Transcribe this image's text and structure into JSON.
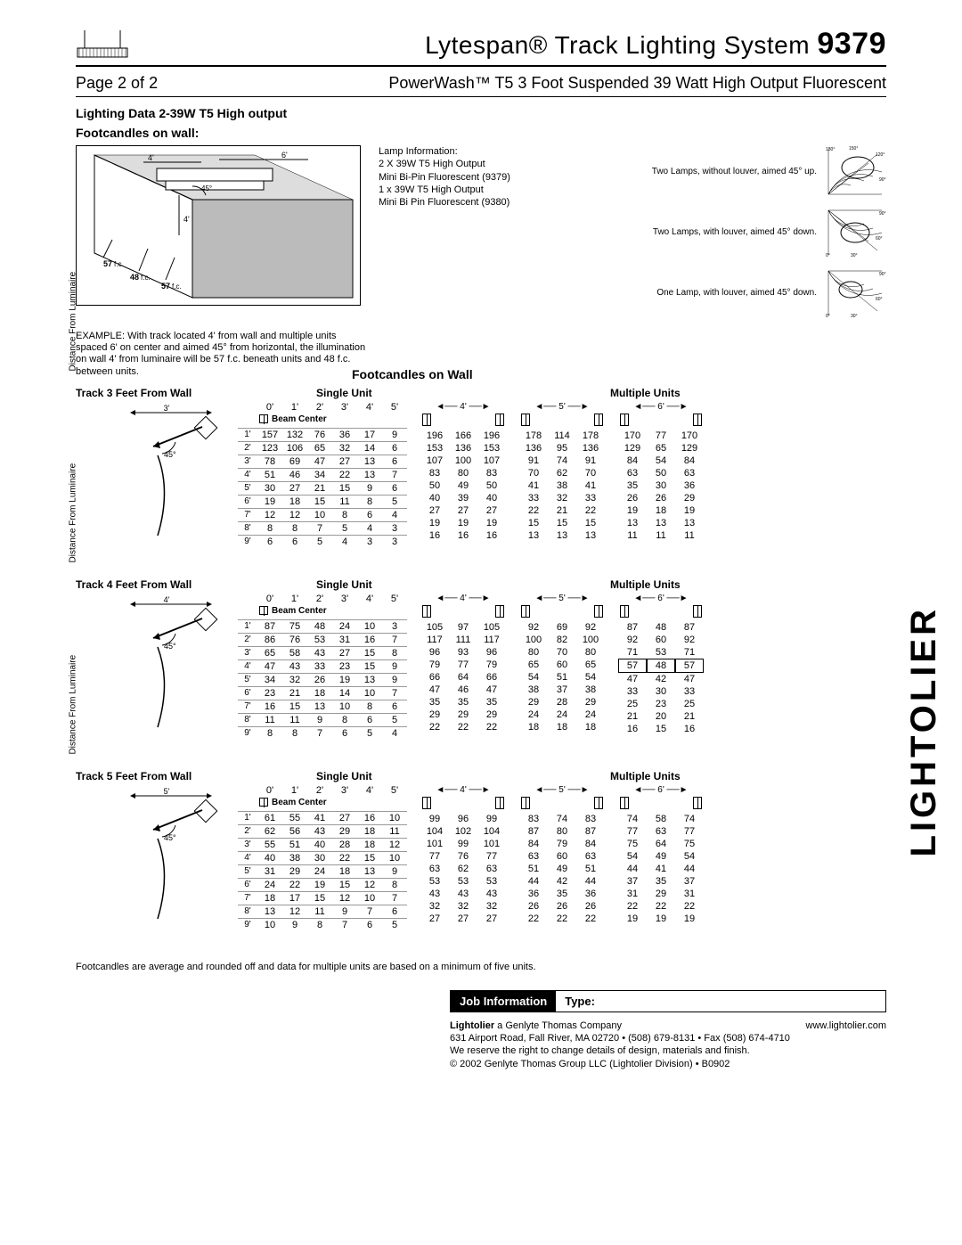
{
  "header": {
    "product_line": "Lytespan® Track Lighting System",
    "model": "9379",
    "page": "Page 2 of 2",
    "product_name": "PowerWash™ T5 3 Foot Suspended 39 Watt High Output Fluorescent"
  },
  "section_title": "Lighting Data  2-39W T5 High output",
  "footcandles_label": "Footcandles on wall:",
  "diagram_labels": {
    "d1": "4'",
    "d2": "6'",
    "angle": "45°",
    "d3": "4'",
    "fc1": "57 f.c.",
    "fc2": "48 f.c.",
    "fc3": "57 f.c."
  },
  "lamp_info": {
    "title": "Lamp Information:",
    "l1": "2 X 39W T5 High Output",
    "l2": "Mini Bi-Pin Fluorescent (9379)",
    "l3": "1 x 39W T5 High Output",
    "l4": "Mini Bi Pin Fluorescent (9380)"
  },
  "polar": {
    "p1": "Two Lamps, without louver, aimed 45° up.",
    "p2": "Two Lamps, with louver, aimed 45° down.",
    "p3": "One Lamp, with louver, aimed 45° down.",
    "angles": {
      "a180": "180°",
      "a150": "150°",
      "a120": "120°",
      "a90": "90°",
      "a60": "60°",
      "a30": "30°",
      "a0": "0°"
    }
  },
  "example": "EXAMPLE:  With track located 4' from wall and multiple units spaced 6' on center and aimed 45° from horizontal, the illumination on wall 4' from luminaire will be 57 f.c. beneath units and 48 f.c. between units.",
  "fc_wall_title": "Footcandles on Wall",
  "headers": {
    "beam_center": "Beam Center",
    "single_unit": "Single Unit",
    "multiple_units": "Multiple  Units",
    "y_axis": "Distance From Luminaire",
    "cols": [
      "0'",
      "1'",
      "2'",
      "3'",
      "4'",
      "5'"
    ],
    "rows": [
      "1'",
      "2'",
      "3'",
      "4'",
      "5'",
      "6'",
      "7'",
      "8'",
      "9'"
    ],
    "spacings": [
      "4'",
      "5'",
      "6'"
    ],
    "angle": "45°"
  },
  "tables": {
    "t3": {
      "label": "Track 3 Feet From Wall",
      "dist": "3'",
      "single": [
        [
          157,
          132,
          76,
          36,
          17,
          9
        ],
        [
          123,
          106,
          65,
          32,
          14,
          6
        ],
        [
          78,
          69,
          47,
          27,
          13,
          6
        ],
        [
          51,
          46,
          34,
          22,
          13,
          7
        ],
        [
          30,
          27,
          21,
          15,
          9,
          6
        ],
        [
          19,
          18,
          15,
          11,
          8,
          5
        ],
        [
          12,
          12,
          10,
          8,
          6,
          4
        ],
        [
          8,
          8,
          7,
          5,
          4,
          3
        ],
        [
          6,
          6,
          5,
          4,
          3,
          3
        ]
      ],
      "m4": [
        [
          196,
          166,
          196
        ],
        [
          153,
          136,
          153
        ],
        [
          107,
          100,
          107
        ],
        [
          83,
          80,
          83
        ],
        [
          50,
          49,
          50
        ],
        [
          40,
          39,
          40
        ],
        [
          27,
          27,
          27
        ],
        [
          19,
          19,
          19
        ],
        [
          16,
          16,
          16
        ]
      ],
      "m5": [
        [
          178,
          114,
          178
        ],
        [
          136,
          95,
          136
        ],
        [
          91,
          74,
          91
        ],
        [
          70,
          62,
          70
        ],
        [
          41,
          38,
          41
        ],
        [
          33,
          32,
          33
        ],
        [
          22,
          21,
          22
        ],
        [
          15,
          15,
          15
        ],
        [
          13,
          13,
          13
        ]
      ],
      "m6": [
        [
          170,
          77,
          170
        ],
        [
          129,
          65,
          129
        ],
        [
          84,
          54,
          84
        ],
        [
          63,
          50,
          63
        ],
        [
          35,
          30,
          36
        ],
        [
          26,
          26,
          29
        ],
        [
          19,
          18,
          19
        ],
        [
          13,
          13,
          13
        ],
        [
          11,
          11,
          11
        ]
      ]
    },
    "t4": {
      "label": "Track 4 Feet From Wall",
      "dist": "4'",
      "single": [
        [
          87,
          75,
          48,
          24,
          10,
          3
        ],
        [
          86,
          76,
          53,
          31,
          16,
          7
        ],
        [
          65,
          58,
          43,
          27,
          15,
          8
        ],
        [
          47,
          43,
          33,
          23,
          15,
          9
        ],
        [
          34,
          32,
          26,
          19,
          13,
          9
        ],
        [
          23,
          21,
          18,
          14,
          10,
          7
        ],
        [
          16,
          15,
          13,
          10,
          8,
          6
        ],
        [
          11,
          11,
          9,
          8,
          6,
          5
        ],
        [
          8,
          8,
          7,
          6,
          5,
          4
        ]
      ],
      "m4": [
        [
          105,
          97,
          105
        ],
        [
          117,
          111,
          117
        ],
        [
          96,
          93,
          96
        ],
        [
          79,
          77,
          79
        ],
        [
          66,
          64,
          66
        ],
        [
          47,
          46,
          47
        ],
        [
          35,
          35,
          35
        ],
        [
          29,
          29,
          29
        ],
        [
          22,
          22,
          22
        ]
      ],
      "m5": [
        [
          92,
          69,
          92
        ],
        [
          100,
          82,
          100
        ],
        [
          80,
          70,
          80
        ],
        [
          65,
          60,
          65
        ],
        [
          54,
          51,
          54
        ],
        [
          38,
          37,
          38
        ],
        [
          29,
          28,
          29
        ],
        [
          24,
          24,
          24
        ],
        [
          18,
          18,
          18
        ]
      ],
      "m6": [
        [
          87,
          48,
          87
        ],
        [
          92,
          60,
          92
        ],
        [
          71,
          53,
          71
        ],
        [
          57,
          48,
          57
        ],
        [
          47,
          42,
          47
        ],
        [
          33,
          30,
          33
        ],
        [
          25,
          23,
          25
        ],
        [
          21,
          20,
          21
        ],
        [
          16,
          15,
          16
        ]
      ],
      "m6_boxed_row": 3
    },
    "t5": {
      "label": "Track 5 Feet From Wall",
      "dist": "5'",
      "single": [
        [
          61,
          55,
          41,
          27,
          16,
          10
        ],
        [
          62,
          56,
          43,
          29,
          18,
          11
        ],
        [
          55,
          51,
          40,
          28,
          18,
          12
        ],
        [
          40,
          38,
          30,
          22,
          15,
          10
        ],
        [
          31,
          29,
          24,
          18,
          13,
          9
        ],
        [
          24,
          22,
          19,
          15,
          12,
          8
        ],
        [
          18,
          17,
          15,
          12,
          10,
          7
        ],
        [
          13,
          12,
          11,
          9,
          7,
          6
        ],
        [
          10,
          9,
          8,
          7,
          6,
          5
        ]
      ],
      "m4": [
        [
          99,
          96,
          99
        ],
        [
          104,
          102,
          104
        ],
        [
          101,
          99,
          101
        ],
        [
          77,
          76,
          77
        ],
        [
          63,
          62,
          63
        ],
        [
          53,
          53,
          53
        ],
        [
          43,
          43,
          43
        ],
        [
          32,
          32,
          32
        ],
        [
          27,
          27,
          27
        ]
      ],
      "m5": [
        [
          83,
          74,
          83
        ],
        [
          87,
          80,
          87
        ],
        [
          84,
          79,
          84
        ],
        [
          63,
          60,
          63
        ],
        [
          51,
          49,
          51
        ],
        [
          44,
          42,
          44
        ],
        [
          36,
          35,
          36
        ],
        [
          26,
          26,
          26
        ],
        [
          22,
          22,
          22
        ]
      ],
      "m6": [
        [
          74,
          58,
          74
        ],
        [
          77,
          63,
          77
        ],
        [
          75,
          64,
          75
        ],
        [
          54,
          49,
          54
        ],
        [
          44,
          41,
          44
        ],
        [
          37,
          35,
          37
        ],
        [
          31,
          29,
          31
        ],
        [
          22,
          22,
          22
        ],
        [
          19,
          19,
          19
        ]
      ]
    }
  },
  "footnote": "Footcandles are average and rounded off and data for multiple units are based on a minimum of five units.",
  "job_bar": {
    "info": "Job Information",
    "type": "Type:"
  },
  "footer": {
    "l1a": "Lightolier",
    "l1b": " a Genlyte Thomas Company",
    "l1c": "www.lightolier.com",
    "l2": "631 Airport Road, Fall River, MA 02720  •  (508) 679-8131  •  Fax (508) 674-4710",
    "l3": "We reserve the right to change details of design, materials and finish.",
    "l4": "© 2002 Genlyte Thomas Group LLC (Lightolier Division)  •  B0902"
  },
  "brand": "LIGHTOLIER"
}
